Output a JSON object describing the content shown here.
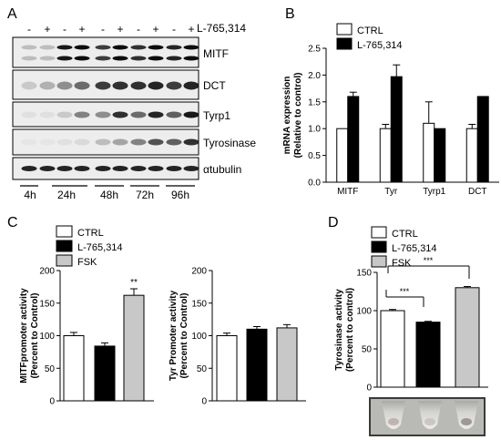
{
  "panels": {
    "a": {
      "letter": "A",
      "signs": [
        "-",
        "+",
        "-",
        "+",
        "-",
        "+",
        "-",
        "+",
        "-",
        "+"
      ],
      "treatment": "L-765,314",
      "blots": [
        "MITF",
        "DCT",
        "Tyrp1",
        "Tyrosinase",
        "αtubulin"
      ],
      "timepoints": [
        "4h",
        "24h",
        "48h",
        "72h",
        "96h"
      ]
    },
    "b": {
      "letter": "B"
    },
    "c": {
      "letter": "C"
    },
    "d": {
      "letter": "D",
      "sig_pairs": [
        "***",
        "***"
      ]
    }
  },
  "colors": {
    "ctrl": "#ffffff",
    "l765": "#000000",
    "fsk": "#c8c8c8"
  },
  "chart_data": [
    {
      "id": "b",
      "type": "bar",
      "categories": [
        "MITF",
        "Tyr",
        "Tyrp1",
        "DCT"
      ],
      "ylabel": "mRNA expression\n(Relative to control)",
      "ylim": [
        0,
        2.5
      ],
      "yticks": [
        "0.0",
        "0.5",
        "1.0",
        "1.5",
        "2.0",
        "2.5"
      ],
      "legend": [
        "CTRL",
        "L-765,314"
      ],
      "series": [
        {
          "name": "CTRL",
          "values": [
            1.0,
            1.0,
            1.1,
            1.0
          ],
          "errors": [
            0.0,
            0.08,
            0.4,
            0.08
          ]
        },
        {
          "name": "L-765,314",
          "values": [
            1.6,
            1.97,
            1.0,
            1.6
          ],
          "errors": [
            0.08,
            0.22,
            0.0,
            0.0
          ]
        }
      ]
    },
    {
      "id": "c1",
      "type": "bar",
      "categories": [
        "CTRL",
        "L-765,314",
        "FSK"
      ],
      "ylabel": "MITFpromoter activity\n(Percent to Control)",
      "ylim": [
        0,
        200
      ],
      "yticks": [
        "0",
        "50",
        "100",
        "150",
        "200"
      ],
      "legend": [
        "CTRL",
        "L-765,314",
        "FSK"
      ],
      "values": [
        100,
        84,
        162
      ],
      "errors": [
        5,
        5,
        10
      ],
      "annotations": [
        "",
        "",
        "**"
      ]
    },
    {
      "id": "c2",
      "type": "bar",
      "categories": [
        "CTRL",
        "L-765,314",
        "FSK"
      ],
      "ylabel": "Tyr Promoter activity\n(Percent to Control)",
      "ylim": [
        0,
        200
      ],
      "yticks": [
        "0",
        "50",
        "100",
        "150",
        "200"
      ],
      "values": [
        100,
        110,
        112
      ],
      "errors": [
        4,
        4,
        5
      ]
    },
    {
      "id": "d",
      "type": "bar",
      "categories": [
        "CTRL",
        "L-765,314",
        "FSK"
      ],
      "ylabel": "Tyrosinase activity\n(Percent to control)",
      "ylim": [
        0,
        150
      ],
      "yticks": [
        "0",
        "50",
        "100",
        "150"
      ],
      "legend": [
        "CTRL",
        "L-765,314",
        "FSK"
      ],
      "values": [
        100,
        85,
        130
      ],
      "errors": [
        1.5,
        1,
        1.5
      ]
    }
  ]
}
